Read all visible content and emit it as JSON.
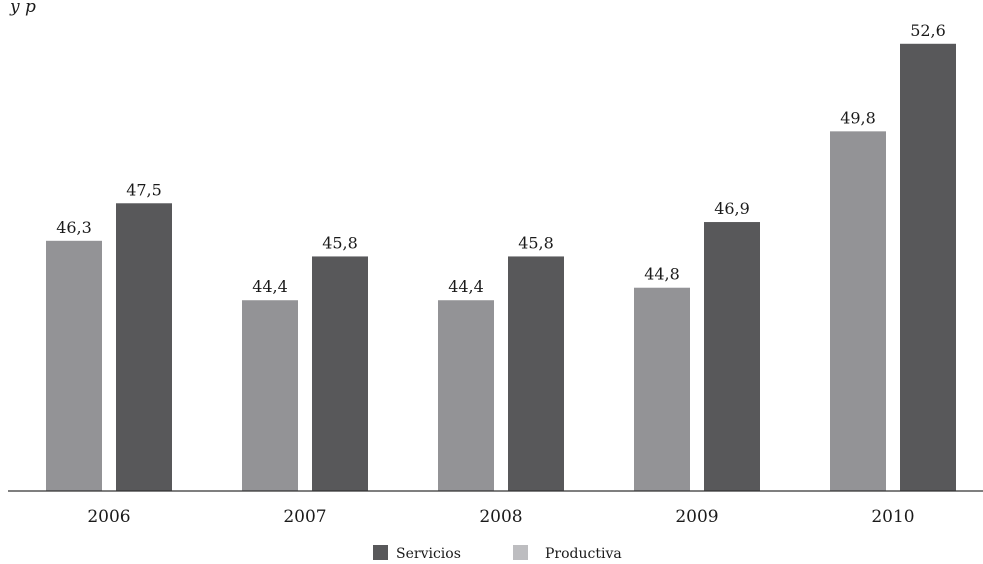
{
  "header_fragment": "y p",
  "chart_data": {
    "type": "bar",
    "categories": [
      "2006",
      "2007",
      "2008",
      "2009",
      "2010"
    ],
    "series": [
      {
        "name": "Productiva",
        "values": [
          46.3,
          44.4,
          44.4,
          44.8,
          49.8
        ],
        "labels": [
          "46,3",
          "44,4",
          "44,4",
          "44,8",
          "49,8"
        ],
        "color": "#939396"
      },
      {
        "name": "Servicios",
        "values": [
          47.5,
          45.8,
          45.8,
          46.9,
          52.6
        ],
        "labels": [
          "47,5",
          "45,8",
          "45,8",
          "46,9",
          "52,6"
        ],
        "color": "#58585a"
      }
    ],
    "ylim": [
      38.3,
      54.0
    ],
    "grid": false,
    "legend": {
      "placement": "bottom-center",
      "items": [
        {
          "label": "Servicios",
          "color": "#58585a"
        },
        {
          "label": "Productiva",
          "color": "#bdbdc0"
        }
      ]
    }
  }
}
